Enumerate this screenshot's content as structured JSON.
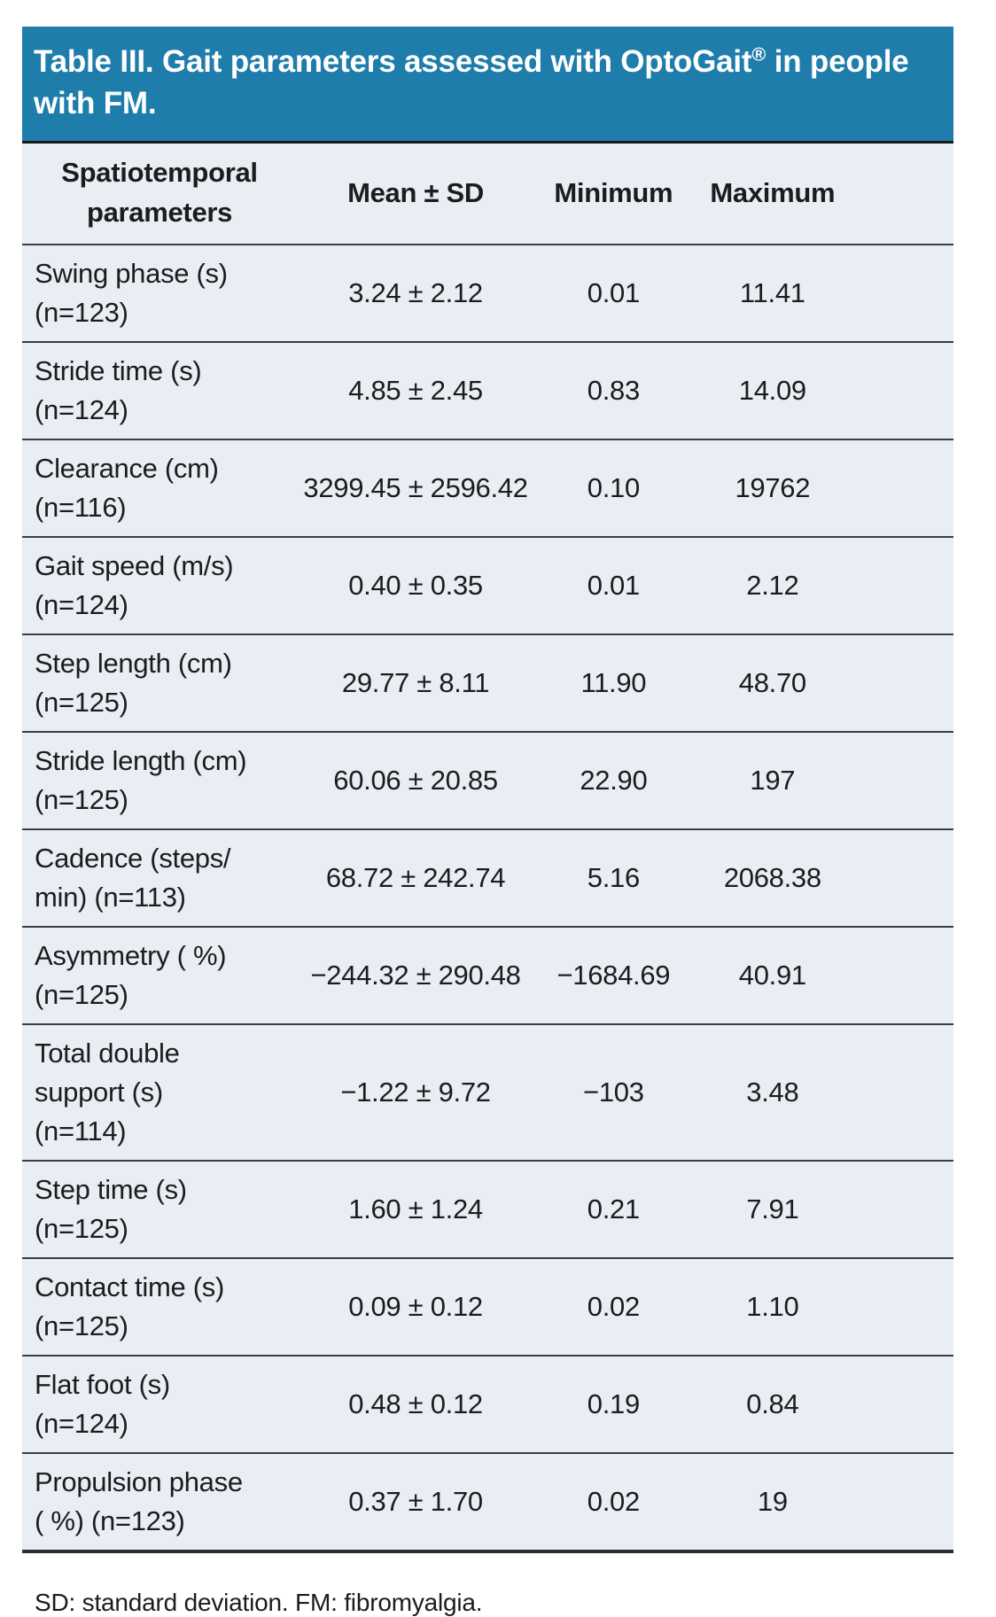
{
  "title": {
    "pre": "Table III. Gait parameters assessed with OptoGait",
    "reg": "®",
    "post": " in people with FM."
  },
  "columns": {
    "parameter_lines": [
      "Spatiotemporal",
      "parameters"
    ],
    "mean": "Mean ± SD",
    "min": "Minimum",
    "max": "Maximum"
  },
  "rows": [
    {
      "label_lines": [
        "Swing phase (s)",
        "(n=123)"
      ],
      "mean": "3.24 ± 2.12",
      "min": "0.01",
      "max": "11.41"
    },
    {
      "label_lines": [
        "Stride time (s)",
        "(n=124)"
      ],
      "mean": "4.85 ± 2.45",
      "min": "0.83",
      "max": "14.09"
    },
    {
      "label_lines": [
        "Clearance (cm)",
        "(n=116)"
      ],
      "mean": "3299.45 ± 2596.42",
      "min": "0.10",
      "max": "19762"
    },
    {
      "label_lines": [
        "Gait speed (m/s)",
        "(n=124)"
      ],
      "mean": "0.40 ± 0.35",
      "min": "0.01",
      "max": "2.12"
    },
    {
      "label_lines": [
        "Step length (cm)",
        "(n=125)"
      ],
      "mean": "29.77 ± 8.11",
      "min": "11.90",
      "max": "48.70"
    },
    {
      "label_lines": [
        "Stride length (cm)",
        "(n=125)"
      ],
      "mean": "60.06 ± 20.85",
      "min": "22.90",
      "max": "197"
    },
    {
      "label_lines": [
        "Cadence (steps/",
        "min) (n=113)"
      ],
      "mean": "68.72 ± 242.74",
      "min": "5.16",
      "max": "2068.38"
    },
    {
      "label_lines": [
        "Asymmetry ( %)",
        "(n=125)"
      ],
      "mean": "−244.32 ± 290.48",
      "min": "−1684.69",
      "max": "40.91"
    },
    {
      "label_lines": [
        "Total double",
        "support (s)",
        "(n=114)"
      ],
      "mean": "−1.22 ± 9.72",
      "min": "−103",
      "max": "3.48"
    },
    {
      "label_lines": [
        "Step time (s)",
        "(n=125)"
      ],
      "mean": "1.60 ± 1.24",
      "min": "0.21",
      "max": "7.91"
    },
    {
      "label_lines": [
        "Contact time (s)",
        "(n=125)"
      ],
      "mean": "0.09 ± 0.12",
      "min": "0.02",
      "max": "1.10"
    },
    {
      "label_lines": [
        "Flat foot (s)",
        "(n=124)"
      ],
      "mean": "0.48 ± 0.12",
      "min": "0.19",
      "max": "0.84"
    },
    {
      "label_lines": [
        "Propulsion phase",
        "( %) (n=123)"
      ],
      "mean": "0.37 ± 1.70",
      "min": "0.02",
      "max": "19"
    }
  ],
  "footnote": "SD: standard deviation. FM: fibromyalgia.",
  "colors": {
    "header_bg": "#1E7DAB",
    "body_bg": "#E9EDF4",
    "rule": "#3D3D3D",
    "text": "#1C1C1C"
  }
}
